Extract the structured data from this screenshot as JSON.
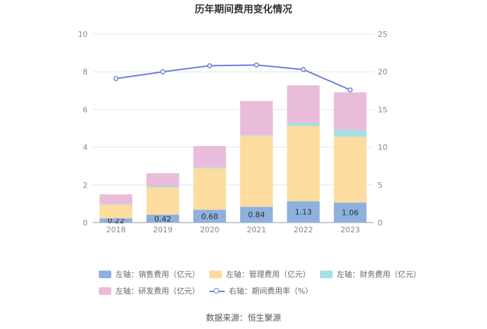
{
  "chart_data": {
    "type": "bar",
    "stacked": true,
    "title": "历年期间费用变化情况",
    "categories": [
      "2018",
      "2019",
      "2020",
      "2021",
      "2022",
      "2023"
    ],
    "left_axis": {
      "ylim": [
        0,
        10
      ],
      "ticks": [
        "0",
        "2",
        "4",
        "6",
        "8",
        "10"
      ]
    },
    "right_axis": {
      "ylim": [
        0,
        25
      ],
      "ticks": [
        "0",
        "5",
        "10",
        "15",
        "20",
        "25"
      ]
    },
    "series": [
      {
        "name": "左轴：销售费用（亿元）",
        "axis": "left",
        "color": "#8eb0de",
        "values": [
          0.22,
          0.42,
          0.68,
          0.84,
          1.13,
          1.06
        ],
        "labels": [
          "0.22",
          "0.42",
          "0.68",
          "0.84",
          "1.13",
          "1.06"
        ]
      },
      {
        "name": "左轴：管理费用（亿元）",
        "axis": "left",
        "color": "#fddc9f",
        "values": [
          0.72,
          1.45,
          2.2,
          3.75,
          4.0,
          3.5
        ]
      },
      {
        "name": "左轴：财务费用（亿元）",
        "axis": "left",
        "color": "#a3dfe3",
        "values": [
          0.03,
          0.05,
          0.06,
          0.03,
          0.15,
          0.35
        ]
      },
      {
        "name": "左轴：研发费用（亿元）",
        "axis": "left",
        "color": "#e9bcdb",
        "values": [
          0.53,
          0.7,
          1.12,
          1.83,
          2.0,
          2.0
        ]
      },
      {
        "name": "右轴：期间费用率（%）",
        "axis": "right",
        "type": "line",
        "color": "#6f7be0",
        "values": [
          19.1,
          20.0,
          20.8,
          20.9,
          20.3,
          17.6
        ]
      }
    ]
  },
  "source": "数据来源：恒生聚源"
}
